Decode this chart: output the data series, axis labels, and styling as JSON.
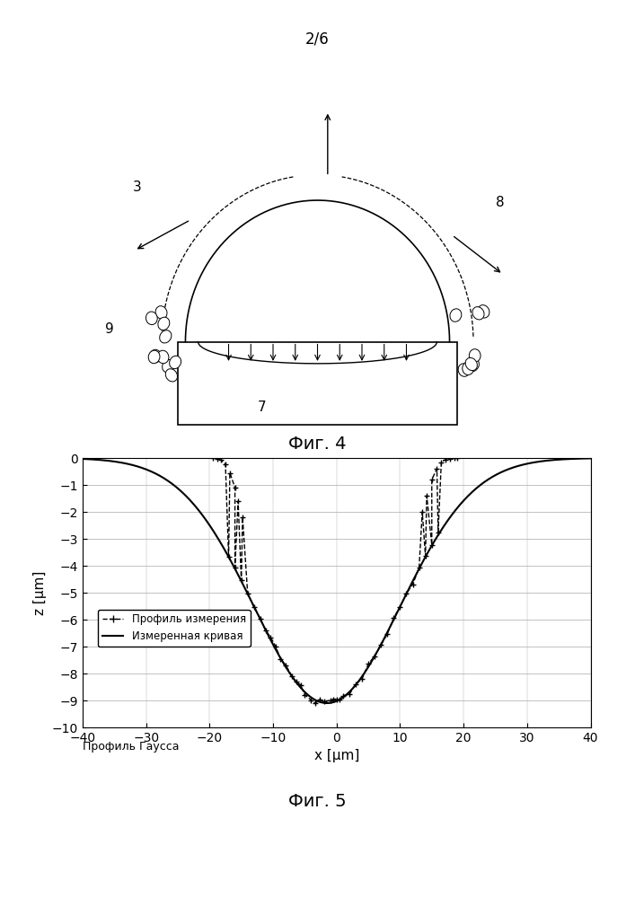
{
  "page_label": "2/6",
  "fig4_label": "Фиг. 4",
  "fig5_label": "Фиг. 5",
  "gauss_label": "Профиль Гаусса",
  "xlabel": "x [µm]",
  "ylabel": "z [µm]",
  "xlim": [
    -40,
    40
  ],
  "ylim": [
    -10,
    0
  ],
  "xticks": [
    -40,
    -30,
    -20,
    -10,
    0,
    10,
    20,
    30,
    40
  ],
  "yticks": [
    0,
    -1,
    -2,
    -3,
    -4,
    -5,
    -6,
    -7,
    -8,
    -9,
    -10
  ],
  "legend_label1": "Профиль измерения",
  "legend_label2": "Измеренная кривая",
  "background": "#ffffff",
  "line_color": "#000000",
  "grid_color": "#aaaaaa"
}
